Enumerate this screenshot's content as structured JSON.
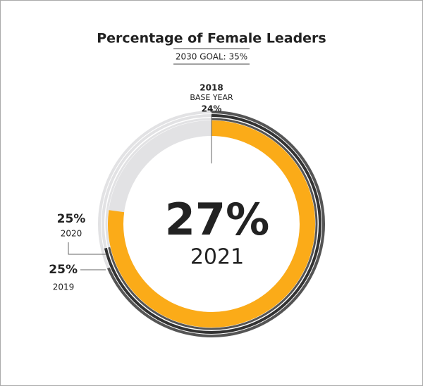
{
  "chart_data": {
    "type": "radial",
    "title": "Percentage of Female Leaders",
    "goal": {
      "value": 35,
      "label": "2030 GOAL: 35%"
    },
    "track_color": "#e2e2e4",
    "series": [
      {
        "name": "2018",
        "note": "BASE YEAR",
        "values": [
          24
        ],
        "value_labels": [
          "24%"
        ],
        "color": "#555555"
      },
      {
        "name": "2019",
        "values": [
          25
        ],
        "value_labels": [
          "25%"
        ],
        "color": "#333333"
      },
      {
        "name": "2020",
        "values": [
          25
        ],
        "value_labels": [
          "25%"
        ],
        "color": "#555555"
      },
      {
        "name": "2021",
        "values": [
          27
        ],
        "value_labels": [
          "27%"
        ],
        "color": "#fbab18"
      }
    ]
  }
}
